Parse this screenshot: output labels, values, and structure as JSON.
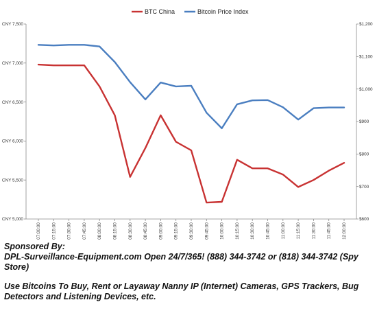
{
  "chart_data": {
    "type": "line",
    "title": "",
    "legend_position": "top-center",
    "grid": false,
    "x": [
      "07:00:00",
      "07:15:00",
      "07:30:00",
      "07:45:00",
      "08:00:00",
      "08:15:00",
      "08:30:00",
      "08:45:00",
      "09:00:00",
      "09:15:00",
      "09:30:00",
      "09:45:00",
      "10:00:00",
      "10:15:00",
      "10:30:00",
      "10:45:00",
      "11:00:00",
      "11:15:00",
      "11:30:00",
      "11:45:00",
      "12:00:00"
    ],
    "series": [
      {
        "name": "BTC China",
        "axis": "left",
        "color": "#c83232",
        "values": [
          6980,
          6970,
          6970,
          6970,
          6700,
          6330,
          5540,
          5910,
          6330,
          5990,
          5880,
          5210,
          5220,
          5760,
          5650,
          5650,
          5570,
          5410,
          5500,
          5620,
          5720
        ]
      },
      {
        "name": "Bitcoin Price Index",
        "axis": "right",
        "color": "#4a7ec0",
        "values": [
          1136,
          1134,
          1136,
          1136,
          1131,
          1083,
          1021,
          968,
          1020,
          1008,
          1010,
          927,
          879,
          953,
          965,
          966,
          944,
          906,
          941,
          943,
          943
        ]
      }
    ],
    "y_left": {
      "ylim": [
        5000,
        7500
      ],
      "ticks": [
        "CNY 5,000",
        "CNY 5,500",
        "CNY 6,000",
        "CNY 6,500",
        "CNY 7,000",
        "CNY 7,500"
      ]
    },
    "y_right": {
      "ylim": [
        600,
        1200
      ],
      "ticks": [
        "$600",
        "$700",
        "$800",
        "$900",
        "$1,000",
        "$1,100",
        "$1,200"
      ]
    }
  },
  "caption": {
    "line1": "Sponsored By:",
    "line2": "DPL-Surveillance-Equipment.com Open 24/7/365! (888) 344-3742 or (818) 344-3742 (Spy Store)",
    "line3": "Use Bitcoins To Buy, Rent or Layaway Nanny IP (Internet) Cameras, GPS Trackers, Bug Detectors and Listening Devices, etc."
  }
}
